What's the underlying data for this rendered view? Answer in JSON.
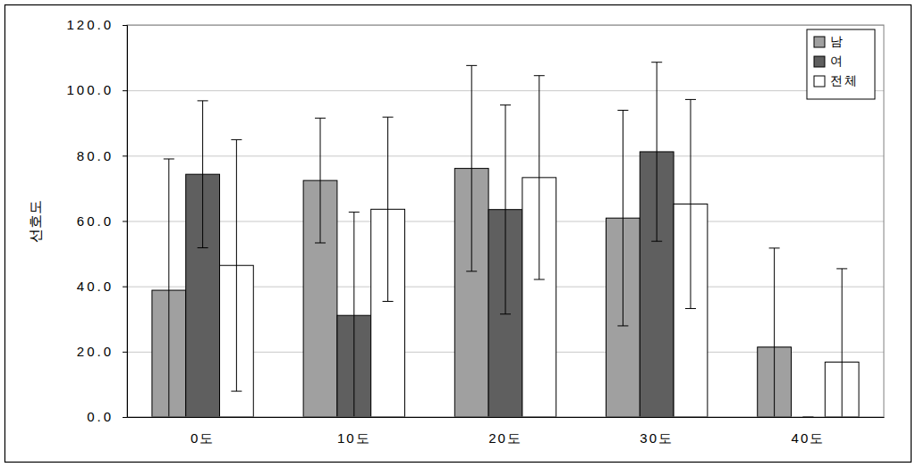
{
  "chart_data": {
    "type": "bar",
    "y_label": "선호도",
    "categories": [
      "0도",
      "10도",
      "20도",
      "30도",
      "40도"
    ],
    "series": [
      {
        "name": "남",
        "color": "#a0a0a0",
        "values": [
          38.8,
          72.4,
          76.1,
          60.9,
          21.4
        ],
        "errors": [
          40.2,
          19.1,
          31.5,
          33.0,
          30.3
        ]
      },
      {
        "name": "여",
        "color": "#5f5f5f",
        "values": [
          74.3,
          31.1,
          63.5,
          81.2,
          0.0
        ],
        "errors": [
          22.5,
          31.6,
          32.0,
          27.4,
          0.0
        ]
      },
      {
        "name": "전체",
        "color": "#ffffff",
        "values": [
          46.4,
          63.6,
          73.3,
          65.2,
          16.8
        ],
        "errors": [
          38.5,
          28.2,
          31.2,
          32.0,
          28.6
        ]
      }
    ],
    "ylim": [
      0,
      120
    ],
    "yticks": [
      {
        "value": 0,
        "label": "0.0"
      },
      {
        "value": 20,
        "label": "20.0"
      },
      {
        "value": 40,
        "label": "40.0"
      },
      {
        "value": 60,
        "label": "60.0"
      },
      {
        "value": 80,
        "label": "80.0"
      },
      {
        "value": 100,
        "label": "100.0"
      },
      {
        "value": 120,
        "label": "120.0"
      }
    ],
    "grid": true,
    "legend": "top-right"
  }
}
